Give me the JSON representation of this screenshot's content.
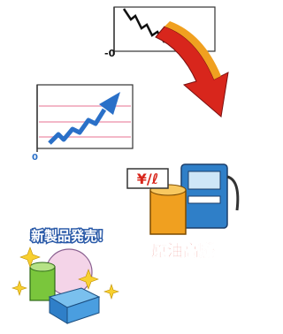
{
  "falling_chart": {
    "axis_label": "-0"
  },
  "rising_chart": {
    "axis_label": "0"
  },
  "oil": {
    "price_sign": "¥/ℓ",
    "caption": "原油高騰"
  },
  "new_product": {
    "caption": "新製品発売！"
  }
}
